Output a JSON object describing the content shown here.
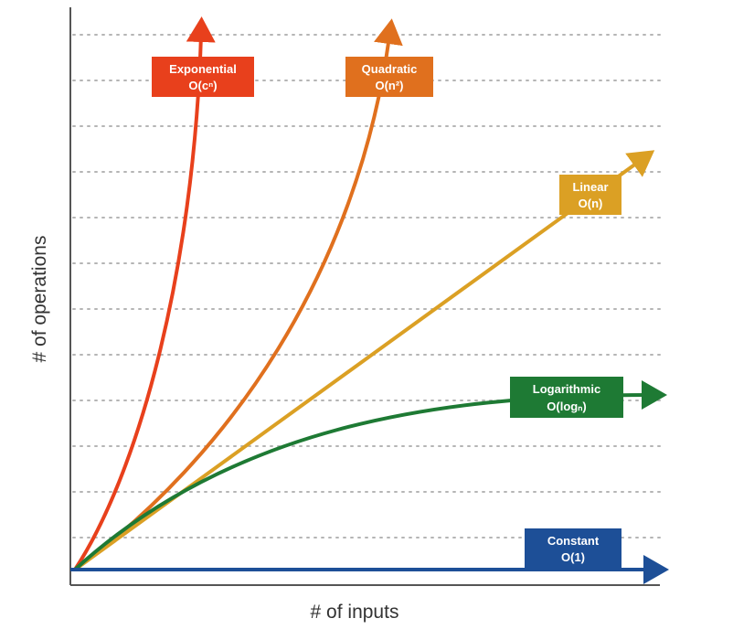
{
  "chart_data": {
    "type": "line",
    "xlabel": "# of inputs",
    "ylabel": "# of operations",
    "grid": true,
    "legend": "inline-labels",
    "series": [
      {
        "key": "exponential",
        "name": "Exponential",
        "notation": "O(cⁿ)",
        "color": "#e8401c"
      },
      {
        "key": "quadratic",
        "name": "Quadratic",
        "notation": "O(n²)",
        "color": "#e0701e"
      },
      {
        "key": "linear",
        "name": "Linear",
        "notation": "O(n)",
        "color": "#dba024"
      },
      {
        "key": "logarithmic",
        "name": "Logarithmic",
        "notation": "O(logₙ)",
        "color": "#1e7a34"
      },
      {
        "key": "constant",
        "name": "Constant",
        "notation": "O(1)",
        "color": "#1d4f97"
      }
    ]
  }
}
